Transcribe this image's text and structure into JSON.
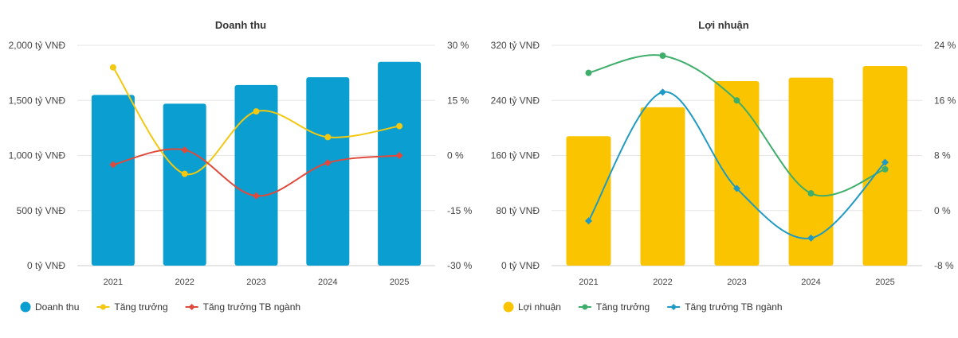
{
  "chart_data": [
    {
      "type": "bar",
      "title": "Doanh thu",
      "categories": [
        "2021",
        "2022",
        "2023",
        "2024",
        "2025"
      ],
      "left_axis": {
        "ylim": [
          0,
          2000
        ],
        "ticks": [
          0,
          500,
          1000,
          1500,
          2000
        ],
        "tick_labels": [
          "0 tỷ VNĐ",
          "500 tỷ VNĐ",
          "1,000 tỷ VNĐ",
          "1,500 tỷ VNĐ",
          "2,000 tỷ VNĐ"
        ]
      },
      "right_axis": {
        "ylim": [
          -30,
          30
        ],
        "ticks": [
          -30,
          -15,
          0,
          15,
          30
        ],
        "tick_labels": [
          "-30 %",
          "-15 %",
          "0 %",
          "15 %",
          "30 %"
        ]
      },
      "bar_series": {
        "name": "Doanh thu",
        "values": [
          1550,
          1470,
          1640,
          1710,
          1850
        ],
        "color": "#0a9fd0"
      },
      "line_series": [
        {
          "name": "Tăng trưởng",
          "values": [
            24,
            -5,
            12,
            5,
            8
          ],
          "color": "#f2c811"
        },
        {
          "name": "Tăng trưởng TB ngành",
          "values": [
            -2.5,
            1.5,
            -11,
            -2,
            0
          ],
          "color": "#e04a3c"
        }
      ],
      "legend_position": "bottom-left",
      "grid": true
    },
    {
      "type": "bar",
      "title": "Lợi nhuận",
      "categories": [
        "2021",
        "2022",
        "2023",
        "2024",
        "2025"
      ],
      "left_axis": {
        "ylim": [
          0,
          320
        ],
        "ticks": [
          0,
          80,
          160,
          240,
          320
        ],
        "tick_labels": [
          "0 tỷ VNĐ",
          "80 tỷ VNĐ",
          "160 tỷ VNĐ",
          "240 tỷ VNĐ",
          "320 tỷ VNĐ"
        ]
      },
      "right_axis": {
        "ylim": [
          -8,
          24
        ],
        "ticks": [
          -8,
          0,
          8,
          16,
          24
        ],
        "tick_labels": [
          "-8 %",
          "0 %",
          "8 %",
          "16 %",
          "24 %"
        ]
      },
      "bar_series": {
        "name": "Lợi nhuận",
        "values": [
          188,
          230,
          268,
          273,
          290
        ],
        "color": "#fbc400"
      },
      "line_series": [
        {
          "name": "Tăng trưởng",
          "values": [
            20,
            22.5,
            16,
            2.5,
            6
          ],
          "color": "#3fae6b"
        },
        {
          "name": "Tăng trưởng TB ngành",
          "values": [
            -1.5,
            17.2,
            3.2,
            -4,
            7
          ],
          "color": "#1f9ac4"
        }
      ],
      "legend_position": "bottom-left",
      "grid": true
    }
  ]
}
